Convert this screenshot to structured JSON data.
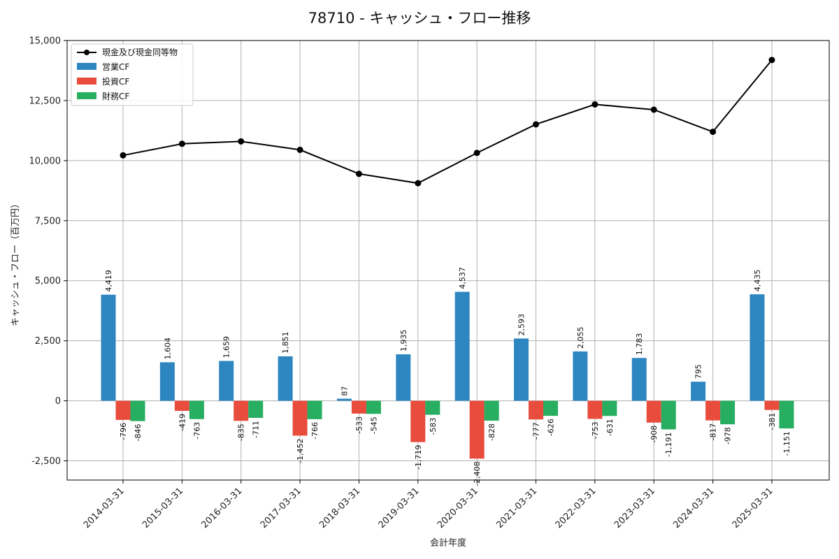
{
  "chart_data": {
    "type": "bar",
    "title": "78710 - キャッシュ・フロー推移",
    "xlabel": "会計年度",
    "ylabel": "キャッシュ・フロー（百万円）",
    "ylim": [
      -3300,
      15000
    ],
    "yticks": [
      -2500,
      0,
      2500,
      5000,
      7500,
      10000,
      12500,
      15000
    ],
    "ytick_labels": [
      "-2,500",
      "0",
      "2,500",
      "5,000",
      "7,500",
      "10,000",
      "12,500",
      "15,000"
    ],
    "grid": true,
    "legend_position": "top-left",
    "categories": [
      "2014-03-31",
      "2015-03-31",
      "2016-03-31",
      "2017-03-31",
      "2018-03-31",
      "2019-03-31",
      "2020-03-31",
      "2021-03-31",
      "2022-03-31",
      "2023-03-31",
      "2024-03-31",
      "2025-03-31"
    ],
    "line_series": {
      "name": "現金及び現金同等物",
      "color": "#000000",
      "values": [
        10220,
        10700,
        10800,
        10450,
        9450,
        9060,
        10320,
        11510,
        12340,
        12120,
        11200,
        14190
      ]
    },
    "series": [
      {
        "name": "営業CF",
        "color": "#2e86c1",
        "values": [
          4419,
          1604,
          1659,
          1851,
          87,
          1935,
          4537,
          2593,
          2055,
          1783,
          795,
          4435
        ],
        "labels": [
          "4,419",
          "1,604",
          "1,659",
          "1,851",
          "87",
          "1,935",
          "4,537",
          "2,593",
          "2,055",
          "1,783",
          "795",
          "4,435"
        ]
      },
      {
        "name": "投資CF",
        "color": "#e74c3c",
        "values": [
          -796,
          -419,
          -835,
          -1452,
          -533,
          -1719,
          -2408,
          -777,
          -753,
          -908,
          -817,
          -381
        ],
        "labels": [
          "-796",
          "-419",
          "-835",
          "-1,452",
          "-533",
          "-1,719",
          "-2,408",
          "-777",
          "-753",
          "-908",
          "-817",
          "-381"
        ]
      },
      {
        "name": "財務CF",
        "color": "#27ae60",
        "values": [
          -846,
          -763,
          -711,
          -766,
          -545,
          -583,
          -828,
          -626,
          -631,
          -1191,
          -978,
          -1151
        ],
        "labels": [
          "-846",
          "-763",
          "-711",
          "-766",
          "-545",
          "-583",
          "-828",
          "-626",
          "-631",
          "-1,191",
          "-978",
          "-1,151"
        ]
      }
    ]
  }
}
